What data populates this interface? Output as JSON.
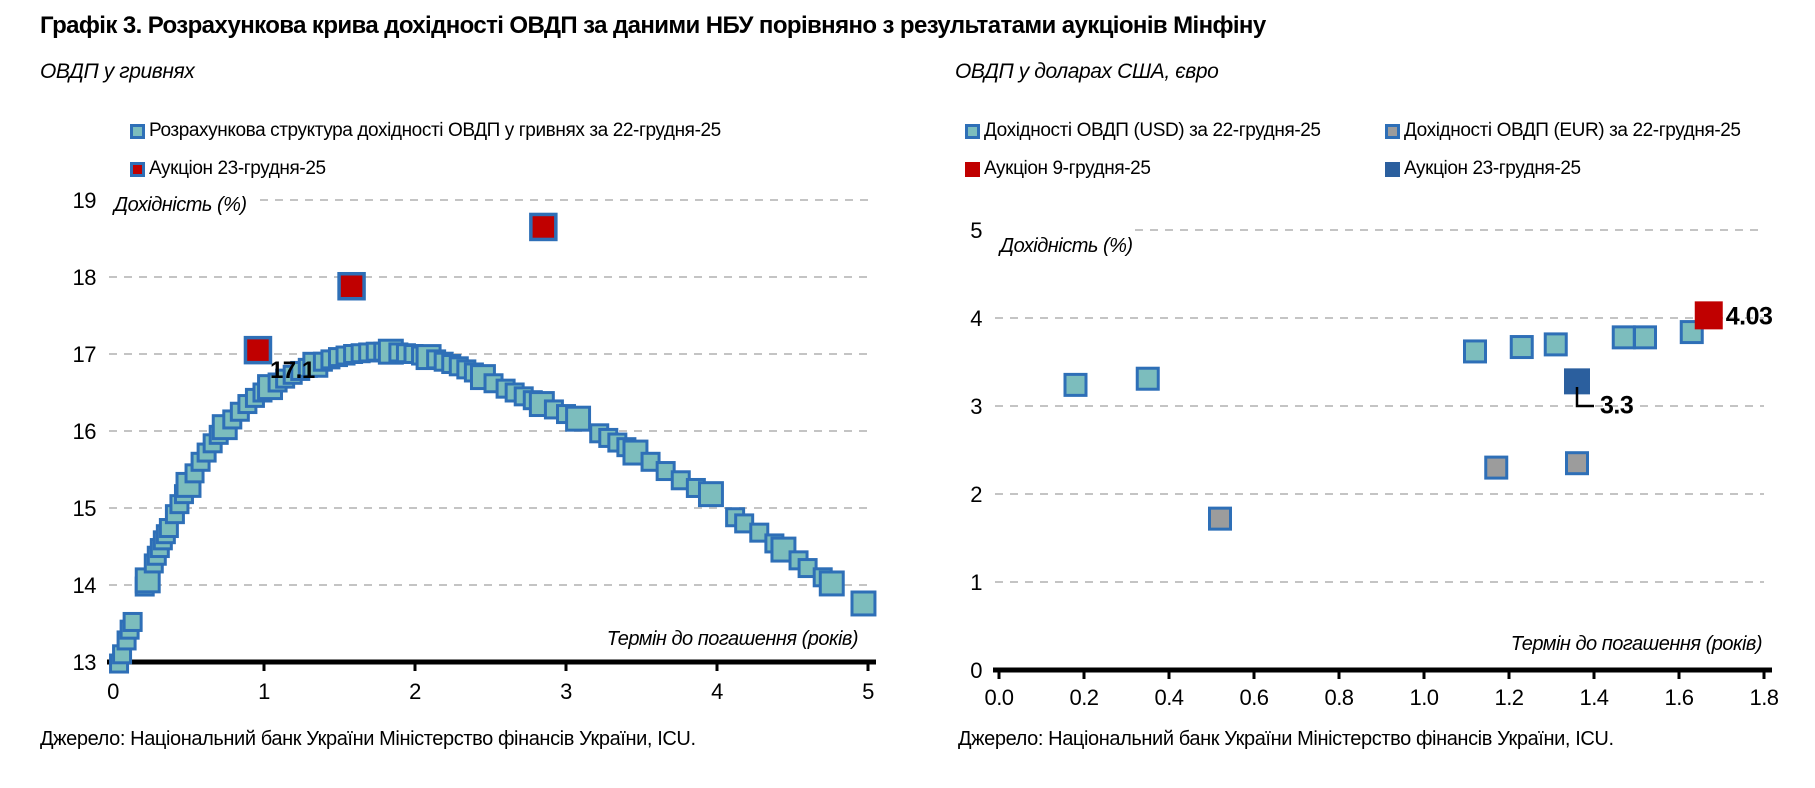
{
  "title": "Графік 3. Розрахункова крива дохідності ОВДП за даними НБУ порівняно з результатами аукціонів Мінфіну",
  "source": "Джерело: Національний банк України Міністерство фінансів України, ICU.",
  "colors": {
    "teal": "#7CBDBD",
    "blue_border": "#2E6FB7",
    "red": "#C00000",
    "blue": "#2B5F9E",
    "gray": "#9C9C9C",
    "grid": "#C4C4C4",
    "axis": "#000000",
    "text": "#000000"
  },
  "chart_data": [
    {
      "type": "scatter",
      "title": "ОВДП у гривнях",
      "ylabel": "Дохідність (%)",
      "xlabel": "Термін до погашення (років)",
      "xlim": [
        0,
        5
      ],
      "ylim": [
        13,
        19
      ],
      "xticks": [
        0,
        1,
        2,
        3,
        4,
        5
      ],
      "yticks": [
        13,
        14,
        15,
        16,
        17,
        18,
        19
      ],
      "grid": "horizontal-dashed",
      "legend_position": "top",
      "series": [
        {
          "name": "Розрахункова структура дохідності ОВДП у гривнях за 22-грудня-25",
          "marker": "square",
          "fill": "teal",
          "stroke": "blue_border",
          "points": [
            [
              0.04,
              12.98
            ],
            [
              0.06,
              13.1
            ],
            [
              0.09,
              13.28
            ],
            [
              0.11,
              13.42
            ],
            [
              0.13,
              13.52
            ],
            [
              0.21,
              13.98
            ],
            [
              0.23,
              14.06,
              1
            ],
            [
              0.27,
              14.28
            ],
            [
              0.29,
              14.38
            ],
            [
              0.31,
              14.48
            ],
            [
              0.33,
              14.58
            ],
            [
              0.35,
              14.66
            ],
            [
              0.37,
              14.74
            ],
            [
              0.41,
              14.92
            ],
            [
              0.44,
              15.05
            ],
            [
              0.47,
              15.18
            ],
            [
              0.5,
              15.3,
              1
            ],
            [
              0.54,
              15.45
            ],
            [
              0.58,
              15.6
            ],
            [
              0.62,
              15.72
            ],
            [
              0.66,
              15.84
            ],
            [
              0.7,
              15.95
            ],
            [
              0.74,
              16.05,
              1
            ],
            [
              0.79,
              16.15
            ],
            [
              0.84,
              16.25
            ],
            [
              0.89,
              16.35
            ],
            [
              0.94,
              16.43
            ],
            [
              0.99,
              16.5
            ],
            [
              1.04,
              16.57,
              1
            ],
            [
              1.09,
              16.63
            ],
            [
              1.14,
              16.68
            ],
            [
              1.19,
              16.73
            ],
            [
              1.24,
              16.78
            ],
            [
              1.29,
              16.82
            ],
            [
              1.34,
              16.86,
              1
            ],
            [
              1.39,
              16.9
            ],
            [
              1.44,
              16.93
            ],
            [
              1.49,
              16.96
            ],
            [
              1.54,
              16.98
            ],
            [
              1.59,
              17.0
            ],
            [
              1.64,
              17.01
            ],
            [
              1.69,
              17.02
            ],
            [
              1.74,
              17.03
            ],
            [
              1.79,
              17.03
            ],
            [
              1.84,
              17.03,
              1
            ],
            [
              1.89,
              17.02
            ],
            [
              1.94,
              17.01
            ],
            [
              1.99,
              17.0
            ],
            [
              2.04,
              16.98
            ],
            [
              2.09,
              16.96,
              1
            ],
            [
              2.14,
              16.93
            ],
            [
              2.19,
              16.9
            ],
            [
              2.24,
              16.87
            ],
            [
              2.29,
              16.84
            ],
            [
              2.34,
              16.8
            ],
            [
              2.39,
              16.76
            ],
            [
              2.45,
              16.7,
              1
            ],
            [
              2.52,
              16.62
            ],
            [
              2.6,
              16.55
            ],
            [
              2.66,
              16.5
            ],
            [
              2.72,
              16.45
            ],
            [
              2.78,
              16.4
            ],
            [
              2.84,
              16.35,
              1
            ],
            [
              2.92,
              16.28
            ],
            [
              3.0,
              16.22
            ],
            [
              3.08,
              16.16,
              1
            ],
            [
              3.22,
              15.97
            ],
            [
              3.28,
              15.91
            ],
            [
              3.34,
              15.85
            ],
            [
              3.4,
              15.79
            ],
            [
              3.46,
              15.72,
              1
            ],
            [
              3.56,
              15.6
            ],
            [
              3.66,
              15.48
            ],
            [
              3.76,
              15.36
            ],
            [
              3.86,
              15.26
            ],
            [
              3.96,
              15.18,
              1
            ],
            [
              4.12,
              14.88
            ],
            [
              4.18,
              14.8
            ],
            [
              4.28,
              14.68
            ],
            [
              4.38,
              14.54
            ],
            [
              4.44,
              14.46,
              1
            ],
            [
              4.54,
              14.32
            ],
            [
              4.6,
              14.22
            ],
            [
              4.7,
              14.1
            ],
            [
              4.76,
              14.02,
              1
            ],
            [
              4.97,
              13.76,
              1
            ]
          ]
        },
        {
          "name": "Аукціон 23-грудня-25",
          "marker": "square",
          "fill": "red",
          "stroke": "blue_border",
          "points": [
            [
              0.96,
              17.05
            ],
            [
              1.58,
              17.88
            ],
            [
              2.85,
              18.65
            ]
          ]
        }
      ],
      "annotations": [
        {
          "text": "17.1",
          "x": 0.96,
          "y": 17.05
        }
      ]
    },
    {
      "type": "scatter",
      "title": "ОВДП у доларах США, євро",
      "ylabel": "Дохідність (%)",
      "xlabel": "Термін до погашення (років)",
      "xlim": [
        0,
        1.8
      ],
      "ylim": [
        0,
        5
      ],
      "xticks": [
        0,
        0.2,
        0.4,
        0.6,
        0.8,
        1.0,
        1.2,
        1.4,
        1.6,
        1.8
      ],
      "xtick_labels": [
        "0.0",
        "0.2",
        "0.4",
        "0.6",
        "0.8",
        "1.0",
        "1.2",
        "1.4",
        "1.6",
        "1.8"
      ],
      "yticks": [
        0,
        1,
        2,
        3,
        4,
        5
      ],
      "grid": "horizontal-dashed",
      "legend_position": "top",
      "series": [
        {
          "name": "Дохідності ОВДП (USD) за 22-грудня-25",
          "marker": "square",
          "fill": "teal",
          "stroke": "blue_border",
          "points": [
            [
              0.18,
              3.24
            ],
            [
              0.35,
              3.31
            ],
            [
              1.12,
              3.62
            ],
            [
              1.23,
              3.67
            ],
            [
              1.31,
              3.7
            ],
            [
              1.47,
              3.78
            ],
            [
              1.52,
              3.78
            ],
            [
              1.63,
              3.84
            ]
          ]
        },
        {
          "name": "Дохідності ОВДП (EUR) за 22-грудня-25",
          "marker": "square",
          "fill": "gray",
          "stroke": "blue_border",
          "points": [
            [
              0.52,
              1.72
            ],
            [
              1.17,
              2.3
            ],
            [
              1.36,
              2.35
            ]
          ]
        },
        {
          "name": "Аукціон 9-грудня-25",
          "marker": "square",
          "fill": "red",
          "stroke": null,
          "points": [
            [
              1.67,
              4.03
            ]
          ]
        },
        {
          "name": "Аукціон 23-грудня-25",
          "marker": "square",
          "fill": "blue",
          "stroke": null,
          "points": [
            [
              1.36,
              3.28
            ]
          ]
        }
      ],
      "annotations": [
        {
          "text": "4.03",
          "x": 1.67,
          "y": 4.03
        },
        {
          "text": "3.3",
          "x": 1.36,
          "y": 3.28
        }
      ]
    }
  ]
}
